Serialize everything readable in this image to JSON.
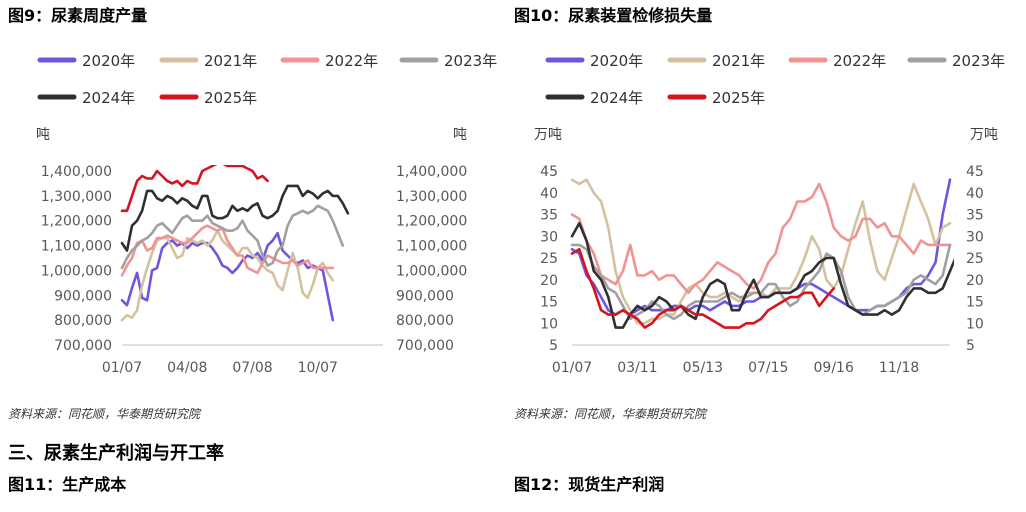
{
  "figures": {
    "fig9_title": "图9：尿素周度产量",
    "fig10_title": "图10：尿素装置检修损失量",
    "fig11_title": "图11：生产成本",
    "fig12_title": "图12：现货生产利润",
    "source_left": "资料来源：同花顺，华泰期货研究院",
    "source_right": "资料来源：同花顺，华泰期货研究院",
    "section_heading": "三、尿素生产利润与开工率"
  },
  "colors": {
    "2020年": "#7055e0",
    "2021年": "#d4c19f",
    "2022年": "#f09393",
    "2023年": "#a0a0a0",
    "2024年": "#303030",
    "2025年": "#d5141e",
    "axis": "#bfbfbf",
    "tick_text": "#595959"
  },
  "chart_data": [
    {
      "id": "fig9",
      "type": "line",
      "title": "图9：尿素周度产量",
      "ylabel_left": "吨",
      "ylabel_right": "吨",
      "ylim": [
        700000,
        1400000
      ],
      "yticks": [
        "700,000",
        "800,000",
        "900,000",
        "1,000,000",
        "1,100,000",
        "1,200,000",
        "1,300,000",
        "1,400,000"
      ],
      "xticks": [
        "01/07",
        "04/08",
        "07/08",
        "10/07"
      ],
      "xtick_positions": [
        1,
        14,
        27,
        40
      ],
      "x_range": [
        1,
        53
      ],
      "grid": false,
      "legend_position": "top",
      "series": [
        {
          "name": "2020年",
          "values": [
            880000,
            860000,
            930000,
            990000,
            890000,
            880000,
            1000000,
            1010000,
            1090000,
            1110000,
            1120000,
            1100000,
            1110000,
            1090000,
            1110000,
            1100000,
            1110000,
            1110000,
            1090000,
            1060000,
            1020000,
            1010000,
            990000,
            1010000,
            1040000,
            1060000,
            1050000,
            1070000,
            1040000,
            1100000,
            1120000,
            1150000,
            1080000,
            1060000,
            1040000,
            1030000,
            1040000,
            1010000,
            1020000,
            1010000,
            1000000,
            900000,
            800000
          ]
        },
        {
          "name": "2021年",
          "values": [
            800000,
            820000,
            810000,
            840000,
            940000,
            1010000,
            1070000,
            1120000,
            1130000,
            1130000,
            1090000,
            1050000,
            1060000,
            1130000,
            1120000,
            1110000,
            1120000,
            1100000,
            1120000,
            1160000,
            1120000,
            1100000,
            1080000,
            1060000,
            1090000,
            1090000,
            1060000,
            1050000,
            1020000,
            1000000,
            990000,
            940000,
            920000,
            1000000,
            1070000,
            1010000,
            910000,
            890000,
            940000,
            1010000,
            1030000,
            990000,
            960000
          ]
        },
        {
          "name": "2022年",
          "values": [
            980000,
            1020000,
            1050000,
            1110000,
            1120000,
            1080000,
            1090000,
            1130000,
            1130000,
            1140000,
            1130000,
            1120000,
            1110000,
            1110000,
            1130000,
            1150000,
            1170000,
            1180000,
            1170000,
            1160000,
            1170000,
            1120000,
            1090000,
            1060000,
            1060000,
            1010000,
            1000000,
            990000,
            1030000,
            1060000,
            1050000,
            1040000,
            1030000,
            1030000,
            1040000,
            1020000,
            1030000,
            1040000,
            1010000,
            1010000,
            1010000,
            1010000,
            1010000
          ]
        },
        {
          "name": "2023年",
          "values": [
            1010000,
            1050000,
            1080000,
            1100000,
            1120000,
            1130000,
            1150000,
            1180000,
            1190000,
            1170000,
            1150000,
            1180000,
            1210000,
            1220000,
            1200000,
            1200000,
            1200000,
            1220000,
            1190000,
            1180000,
            1170000,
            1160000,
            1160000,
            1170000,
            1200000,
            1160000,
            1140000,
            1120000,
            1060000,
            1020000,
            1030000,
            1080000,
            1100000,
            1180000,
            1220000,
            1230000,
            1240000,
            1230000,
            1240000,
            1260000,
            1250000,
            1240000,
            1200000,
            1150000,
            1100000
          ]
        },
        {
          "name": "2024年",
          "values": [
            1110000,
            1080000,
            1180000,
            1200000,
            1240000,
            1320000,
            1320000,
            1290000,
            1280000,
            1300000,
            1290000,
            1270000,
            1290000,
            1280000,
            1260000,
            1250000,
            1300000,
            1300000,
            1220000,
            1210000,
            1210000,
            1220000,
            1260000,
            1240000,
            1250000,
            1240000,
            1260000,
            1270000,
            1220000,
            1210000,
            1220000,
            1240000,
            1300000,
            1340000,
            1340000,
            1340000,
            1300000,
            1320000,
            1310000,
            1290000,
            1310000,
            1320000,
            1300000,
            1300000,
            1270000,
            1230000
          ]
        },
        {
          "name": "2025年",
          "values": [
            1240000,
            1240000,
            1300000,
            1360000,
            1380000,
            1370000,
            1370000,
            1400000,
            1380000,
            1360000,
            1350000,
            1360000,
            1340000,
            1360000,
            1350000,
            1350000,
            1400000,
            1410000,
            1420000,
            1430000,
            1430000,
            1420000,
            1420000,
            1420000,
            1420000,
            1410000,
            1400000,
            1370000,
            1380000,
            1360000
          ]
        }
      ]
    },
    {
      "id": "fig10",
      "type": "line",
      "title": "图10：尿素装置检修损失量",
      "ylabel_left": "万吨",
      "ylabel_right": "万吨",
      "ylim": [
        5,
        45
      ],
      "yticks": [
        "5",
        "10",
        "15",
        "20",
        "25",
        "30",
        "35",
        "40",
        "45"
      ],
      "xticks": [
        "01/07",
        "03/11",
        "05/13",
        "07/15",
        "09/16",
        "11/18"
      ],
      "xtick_positions": [
        1,
        10,
        19,
        28,
        37,
        46
      ],
      "x_range": [
        1,
        53
      ],
      "grid": false,
      "legend_position": "top",
      "series": [
        {
          "name": "2020年",
          "values": [
            27,
            26,
            21,
            19,
            16,
            13,
            12,
            13,
            12,
            13,
            14,
            13,
            13,
            13,
            14,
            14,
            13,
            14,
            14,
            13,
            14,
            15,
            14,
            14,
            15,
            15,
            16,
            16,
            17,
            17,
            17,
            18,
            19,
            19,
            18,
            17,
            16,
            15,
            14,
            13,
            13,
            13,
            14,
            14,
            15,
            16,
            18,
            19,
            19,
            21,
            24,
            35,
            43
          ]
        },
        {
          "name": "2021年",
          "values": [
            43,
            42,
            43,
            40,
            38,
            32,
            22,
            16,
            13,
            10,
            10,
            11,
            11,
            12,
            12,
            15,
            18,
            19,
            17,
            16,
            16,
            17,
            16,
            15,
            17,
            17,
            17,
            16,
            18,
            18,
            18,
            21,
            25,
            30,
            27,
            20,
            18,
            21,
            27,
            33,
            38,
            29,
            22,
            20,
            25,
            30,
            36,
            42,
            38,
            34,
            28,
            32,
            33
          ]
        },
        {
          "name": "2022年",
          "values": [
            35,
            34,
            29,
            26,
            21,
            20,
            19,
            22,
            28,
            21,
            21,
            22,
            20,
            21,
            21,
            19,
            17,
            19,
            20,
            22,
            24,
            23,
            22,
            21,
            19,
            18,
            20,
            24,
            26,
            32,
            34,
            38,
            38,
            39,
            42,
            38,
            32,
            30,
            29,
            30,
            34,
            34,
            32,
            33,
            30,
            30,
            28,
            26,
            29,
            28,
            28,
            28,
            28
          ]
        },
        {
          "name": "2023年",
          "values": [
            28,
            28,
            27,
            23,
            21,
            18,
            17,
            14,
            11,
            12,
            13,
            15,
            14,
            12,
            11,
            12,
            14,
            15,
            15,
            15,
            15,
            16,
            17,
            16,
            16,
            17,
            17,
            19,
            19,
            16,
            14,
            15,
            18,
            20,
            22,
            26,
            25,
            22,
            16,
            13,
            12,
            13,
            14,
            14,
            15,
            16,
            17,
            20,
            21,
            20,
            19,
            21,
            28
          ]
        },
        {
          "name": "2024年",
          "values": [
            30,
            33,
            29,
            22,
            20,
            16,
            9,
            9,
            12,
            14,
            13,
            14,
            16,
            15,
            13,
            14,
            12,
            11,
            16,
            19,
            20,
            19,
            13,
            13,
            17,
            20,
            16,
            16,
            17,
            17,
            17,
            18,
            21,
            22,
            24,
            25,
            25,
            19,
            14,
            13,
            12,
            12,
            12,
            13,
            12,
            13,
            16,
            18,
            18,
            17,
            17,
            18,
            22,
            26
          ]
        },
        {
          "name": "2025年",
          "values": [
            26,
            27,
            22,
            18,
            13,
            12,
            12,
            13,
            12,
            11,
            9,
            10,
            12,
            13,
            13,
            14,
            13,
            12,
            12,
            11,
            10,
            9,
            9,
            9,
            10,
            10,
            11,
            13,
            14,
            15,
            16,
            16,
            17,
            17,
            14,
            16,
            18
          ]
        }
      ]
    }
  ]
}
